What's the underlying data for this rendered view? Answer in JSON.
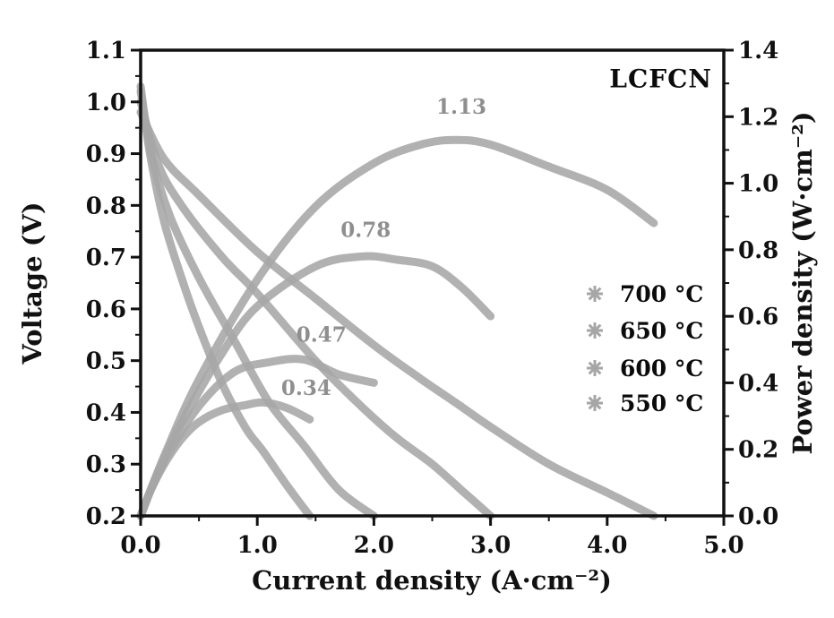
{
  "figure": {
    "kind": "fuel-cell polarization and power density plot"
  },
  "chart_data": {
    "type": "line",
    "title": "LCFCN",
    "xlabel": "Current density (A·cm⁻²)",
    "ylabel_left": "Voltage (V)",
    "ylabel_right": "Power density (W·cm⁻²)",
    "xlim": [
      0.0,
      5.0
    ],
    "ylim_left": [
      0.2,
      1.1
    ],
    "ylim_right": [
      0.0,
      1.4
    ],
    "grid": false,
    "legend_position": "right-middle",
    "axis_color": "#111111",
    "curve_color": "#a6a6a6",
    "annotation_color": "#8f8f8f",
    "x_ticks": [
      {
        "v": 0.0,
        "label": "0.0"
      },
      {
        "v": 1.0,
        "label": "1.0"
      },
      {
        "v": 2.0,
        "label": "2.0"
      },
      {
        "v": 3.0,
        "label": "3.0"
      },
      {
        "v": 4.0,
        "label": "4.0"
      },
      {
        "v": 5.0,
        "label": "5.0"
      }
    ],
    "x_minor": [
      0.5,
      1.5,
      2.5,
      3.5,
      4.5
    ],
    "y_left_ticks": [
      {
        "v": 0.2,
        "label": "0.2"
      },
      {
        "v": 0.3,
        "label": "0.3"
      },
      {
        "v": 0.4,
        "label": "0.4"
      },
      {
        "v": 0.5,
        "label": "0.5"
      },
      {
        "v": 0.6,
        "label": "0.6"
      },
      {
        "v": 0.7,
        "label": "0.7"
      },
      {
        "v": 0.8,
        "label": "0.8"
      },
      {
        "v": 0.9,
        "label": "0.9"
      },
      {
        "v": 1.0,
        "label": "1.0"
      },
      {
        "v": 1.1,
        "label": "1.1"
      }
    ],
    "y_left_minor": [
      0.25,
      0.35,
      0.45,
      0.55,
      0.65,
      0.75,
      0.85,
      0.95,
      1.05
    ],
    "y_right_ticks": [
      {
        "v": 0.0,
        "label": "0.0"
      },
      {
        "v": 0.2,
        "label": "0.2"
      },
      {
        "v": 0.4,
        "label": "0.4"
      },
      {
        "v": 0.6,
        "label": "0.6"
      },
      {
        "v": 0.8,
        "label": "0.8"
      },
      {
        "v": 1.0,
        "label": "1.0"
      },
      {
        "v": 1.2,
        "label": "1.2"
      },
      {
        "v": 1.4,
        "label": "1.4"
      }
    ],
    "y_right_minor": [
      0.1,
      0.3,
      0.5,
      0.7,
      0.9,
      1.1,
      1.3
    ],
    "series": [
      {
        "name": "700 °C",
        "peak_power_label": "1.13",
        "peak_label_at": [
          2.75,
          1.23
        ],
        "iv": [
          [
            0,
            0.98
          ],
          [
            0.2,
            0.89
          ],
          [
            0.5,
            0.82
          ],
          [
            1.0,
            0.71
          ],
          [
            1.5,
            0.62
          ],
          [
            2.0,
            0.53
          ],
          [
            2.4,
            0.465
          ],
          [
            2.7,
            0.419
          ],
          [
            3.0,
            0.372
          ],
          [
            3.5,
            0.3
          ],
          [
            4.0,
            0.245
          ],
          [
            4.4,
            0.2
          ]
        ],
        "power": [
          [
            0,
            0
          ],
          [
            0.2,
            0.178
          ],
          [
            0.5,
            0.41
          ],
          [
            1.0,
            0.71
          ],
          [
            1.5,
            0.93
          ],
          [
            2.0,
            1.06
          ],
          [
            2.4,
            1.116
          ],
          [
            2.7,
            1.13
          ],
          [
            3.0,
            1.116
          ],
          [
            3.5,
            1.05
          ],
          [
            4.0,
            0.98
          ],
          [
            4.4,
            0.88
          ]
        ]
      },
      {
        "name": "650 °C",
        "peak_power_label": "0.78",
        "peak_label_at": [
          1.93,
          0.86
        ],
        "iv": [
          [
            0,
            1.0
          ],
          [
            0.15,
            0.88
          ],
          [
            0.35,
            0.8
          ],
          [
            0.7,
            0.7
          ],
          [
            1.0,
            0.63
          ],
          [
            1.5,
            0.5
          ],
          [
            1.9,
            0.41
          ],
          [
            2.2,
            0.35
          ],
          [
            2.5,
            0.3
          ],
          [
            2.75,
            0.25
          ],
          [
            3.0,
            0.2
          ]
        ],
        "power": [
          [
            0,
            0
          ],
          [
            0.15,
            0.132
          ],
          [
            0.35,
            0.28
          ],
          [
            0.7,
            0.49
          ],
          [
            1.0,
            0.63
          ],
          [
            1.5,
            0.75
          ],
          [
            1.9,
            0.78
          ],
          [
            2.2,
            0.77
          ],
          [
            2.5,
            0.75
          ],
          [
            2.75,
            0.688
          ],
          [
            3.0,
            0.6
          ]
        ]
      },
      {
        "name": "600 °C",
        "peak_power_label": "0.47",
        "peak_label_at": [
          1.55,
          0.545
        ],
        "iv": [
          [
            0,
            1.02
          ],
          [
            0.1,
            0.89
          ],
          [
            0.25,
            0.78
          ],
          [
            0.5,
            0.66
          ],
          [
            0.8,
            0.54
          ],
          [
            1.1,
            0.42
          ],
          [
            1.4,
            0.336
          ],
          [
            1.7,
            0.25
          ],
          [
            2.0,
            0.2
          ]
        ],
        "power": [
          [
            0,
            0
          ],
          [
            0.1,
            0.089
          ],
          [
            0.25,
            0.195
          ],
          [
            0.5,
            0.33
          ],
          [
            0.8,
            0.432
          ],
          [
            1.1,
            0.462
          ],
          [
            1.4,
            0.47
          ],
          [
            1.7,
            0.425
          ],
          [
            2.0,
            0.4
          ]
        ]
      },
      {
        "name": "550 °C",
        "peak_power_label": "0.34",
        "peak_label_at": [
          1.42,
          0.385
        ],
        "iv": [
          [
            0,
            1.03
          ],
          [
            0.08,
            0.9
          ],
          [
            0.2,
            0.77
          ],
          [
            0.35,
            0.66
          ],
          [
            0.5,
            0.565
          ],
          [
            0.7,
            0.455
          ],
          [
            0.9,
            0.37
          ],
          [
            1.05,
            0.325
          ],
          [
            1.25,
            0.26
          ],
          [
            1.45,
            0.2
          ]
        ],
        "power": [
          [
            0,
            0
          ],
          [
            0.08,
            0.072
          ],
          [
            0.2,
            0.154
          ],
          [
            0.35,
            0.231
          ],
          [
            0.5,
            0.282
          ],
          [
            0.7,
            0.318
          ],
          [
            0.9,
            0.333
          ],
          [
            1.05,
            0.341
          ],
          [
            1.25,
            0.325
          ],
          [
            1.45,
            0.29
          ]
        ]
      }
    ],
    "legend": {
      "marker": "asterisk-star",
      "entries": [
        "700 °C",
        "650 °C",
        "600 °C",
        "550 °C"
      ]
    }
  }
}
